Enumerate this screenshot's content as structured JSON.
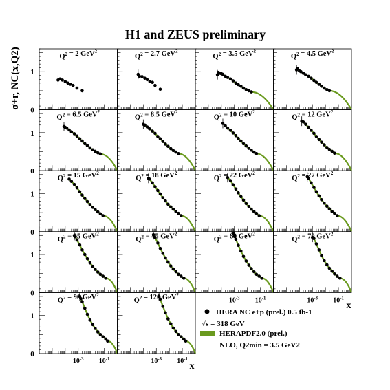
{
  "page": {
    "title": "H1 and ZEUS preliminary",
    "ylabel": "σ+r, NC(x,Q2)",
    "xlabel": "x"
  },
  "legend": {
    "data_label": "HERA NC e+p (prel.) 0.5 fb-1",
    "sqrt_s": "√s = 318 GeV",
    "fit_label": "HERAPDF2.0 (prel.)",
    "fit_note": "NLO, Q2min = 3.5 GeV2"
  },
  "colors": {
    "data": "#000000",
    "fit": "#6a9a1f"
  },
  "chart_data": {
    "type": "scatter",
    "xscale": "log",
    "xlim": [
      1e-06,
      1
    ],
    "ylim": [
      0,
      1.6
    ],
    "yticks": [
      0,
      1
    ],
    "xtick_labels": [
      "10-3",
      "10-1"
    ],
    "panels": [
      {
        "q2": "Q2 = 2 GeV2",
        "x": [
          2.8e-05,
          4e-05,
          6e-05,
          0.0001,
          0.00016,
          0.00025,
          0.0004,
          0.0008,
          0.002
        ],
        "y": [
          0.78,
          0.81,
          0.78,
          0.74,
          0.7,
          0.67,
          0.64,
          0.57,
          0.5
        ],
        "fit": false
      },
      {
        "q2": "Q2 = 2.7 GeV2",
        "x": [
          4e-05,
          5e-05,
          8e-05,
          0.00013,
          0.0002,
          0.00032,
          0.0005,
          0.0008,
          0.002
        ],
        "y": [
          0.93,
          0.88,
          0.87,
          0.83,
          0.79,
          0.74,
          0.72,
          0.64,
          0.54
        ],
        "fit": false
      },
      {
        "q2": "Q2 = 3.5 GeV2",
        "x": [
          5e-05,
          6e-05,
          8e-05,
          0.0001,
          0.00013,
          0.0002,
          0.0003,
          0.0005,
          0.0008,
          0.0013,
          0.002,
          0.0032,
          0.005,
          0.008,
          0.013,
          0.02
        ],
        "y": [
          0.92,
          0.98,
          0.96,
          0.95,
          0.93,
          0.88,
          0.85,
          0.81,
          0.76,
          0.7,
          0.66,
          0.62,
          0.57,
          0.53,
          0.5,
          0.47
        ],
        "fit": true
      },
      {
        "q2": "Q2 = 4.5 GeV2",
        "x": [
          6e-05,
          7e-05,
          0.0001,
          0.00013,
          0.0002,
          0.0003,
          0.0005,
          0.0008,
          0.0013,
          0.002,
          0.0032,
          0.005,
          0.008,
          0.013,
          0.02
        ],
        "y": [
          1.05,
          1.08,
          1.02,
          1.0,
          0.96,
          0.92,
          0.88,
          0.83,
          0.77,
          0.72,
          0.67,
          0.62,
          0.57,
          0.53,
          0.5
        ],
        "fit": true
      },
      {
        "q2": "Q2 = 6.5 GeV2",
        "x": [
          8e-05,
          0.0001,
          0.00013,
          0.0002,
          0.0003,
          0.0005,
          0.0008,
          0.0013,
          0.002,
          0.0032,
          0.005,
          0.008,
          0.013,
          0.02,
          0.032,
          0.05
        ],
        "y": [
          1.16,
          1.14,
          1.12,
          1.07,
          1.02,
          0.97,
          0.91,
          0.84,
          0.78,
          0.71,
          0.66,
          0.6,
          0.55,
          0.51,
          0.47,
          0.44
        ],
        "fit": true
      },
      {
        "q2": "Q2 = 8.5 GeV2",
        "x": [
          0.0001,
          0.00013,
          0.0002,
          0.0003,
          0.0005,
          0.0008,
          0.0013,
          0.002,
          0.0032,
          0.005,
          0.008,
          0.013,
          0.02,
          0.032,
          0.05
        ],
        "y": [
          1.22,
          1.2,
          1.15,
          1.1,
          1.04,
          0.98,
          0.9,
          0.84,
          0.77,
          0.7,
          0.64,
          0.58,
          0.53,
          0.49,
          0.45
        ],
        "fit": true
      },
      {
        "q2": "Q2 = 10 GeV2",
        "x": [
          0.00013,
          0.0002,
          0.0003,
          0.0005,
          0.0008,
          0.0013,
          0.002,
          0.0032,
          0.005,
          0.008,
          0.013,
          0.02,
          0.032,
          0.05
        ],
        "y": [
          1.24,
          1.18,
          1.12,
          1.06,
          0.99,
          0.92,
          0.85,
          0.78,
          0.71,
          0.65,
          0.59,
          0.54,
          0.49,
          0.45
        ],
        "fit": true
      },
      {
        "q2": "Q2 = 12 GeV2",
        "x": [
          0.00015,
          0.0002,
          0.0003,
          0.0005,
          0.0008,
          0.0013,
          0.002,
          0.0032,
          0.005,
          0.008,
          0.013,
          0.02,
          0.032,
          0.05
        ],
        "y": [
          1.3,
          1.28,
          1.22,
          1.14,
          1.06,
          0.98,
          0.9,
          0.82,
          0.75,
          0.68,
          0.61,
          0.56,
          0.51,
          0.46
        ],
        "fit": true
      },
      {
        "q2": "Q2 = 15 GeV2",
        "x": [
          0.0002,
          0.0003,
          0.0005,
          0.0008,
          0.0013,
          0.002,
          0.0032,
          0.005,
          0.008,
          0.013,
          0.02,
          0.032,
          0.05,
          0.08
        ],
        "y": [
          1.38,
          1.32,
          1.24,
          1.15,
          1.05,
          0.96,
          0.87,
          0.79,
          0.71,
          0.64,
          0.58,
          0.52,
          0.47,
          0.42
        ],
        "fit": true
      },
      {
        "q2": "Q2 = 18 GeV2",
        "x": [
          0.00025,
          0.0003,
          0.0005,
          0.0008,
          0.0013,
          0.002,
          0.0032,
          0.005,
          0.008,
          0.013,
          0.02,
          0.032,
          0.05,
          0.08
        ],
        "y": [
          1.4,
          1.38,
          1.28,
          1.18,
          1.08,
          0.99,
          0.89,
          0.81,
          0.72,
          0.65,
          0.59,
          0.53,
          0.48,
          0.42
        ],
        "fit": true
      },
      {
        "q2": "Q2 = 22 GeV2",
        "x": [
          0.0003,
          0.0005,
          0.0008,
          0.0013,
          0.002,
          0.0032,
          0.005,
          0.008,
          0.013,
          0.02,
          0.032,
          0.05,
          0.08
        ],
        "y": [
          1.42,
          1.34,
          1.23,
          1.12,
          1.02,
          0.92,
          0.83,
          0.74,
          0.66,
          0.59,
          0.53,
          0.48,
          0.42
        ],
        "fit": true
      },
      {
        "q2": "Q2 = 27 GeV2",
        "x": [
          0.0004,
          0.0005,
          0.0008,
          0.0013,
          0.002,
          0.0032,
          0.005,
          0.008,
          0.013,
          0.02,
          0.032,
          0.05,
          0.08
        ],
        "y": [
          1.44,
          1.4,
          1.28,
          1.16,
          1.05,
          0.94,
          0.84,
          0.75,
          0.67,
          0.6,
          0.53,
          0.48,
          0.42
        ],
        "fit": true
      },
      {
        "q2": "Q2 = 35 GeV2",
        "x": [
          0.0005,
          0.0006,
          0.0008,
          0.0013,
          0.002,
          0.0032,
          0.005,
          0.008,
          0.013,
          0.02,
          0.032,
          0.05,
          0.08,
          0.13
        ],
        "y": [
          1.5,
          1.47,
          1.38,
          1.25,
          1.12,
          1.0,
          0.89,
          0.78,
          0.69,
          0.61,
          0.54,
          0.48,
          0.43,
          0.38
        ],
        "fit": true
      },
      {
        "q2": "Q2 = 45 GeV2",
        "x": [
          0.0006,
          0.0008,
          0.0013,
          0.002,
          0.0032,
          0.005,
          0.008,
          0.013,
          0.02,
          0.032,
          0.05,
          0.08,
          0.13
        ],
        "y": [
          1.52,
          1.45,
          1.3,
          1.16,
          1.03,
          0.91,
          0.8,
          0.7,
          0.62,
          0.55,
          0.48,
          0.43,
          0.38
        ],
        "fit": true
      },
      {
        "q2": "Q2 = 60 GeV2",
        "x": [
          0.0008,
          0.001,
          0.0013,
          0.002,
          0.0032,
          0.005,
          0.008,
          0.013,
          0.02,
          0.032,
          0.05,
          0.08,
          0.13
        ],
        "y": [
          1.56,
          1.5,
          1.4,
          1.24,
          1.09,
          0.95,
          0.83,
          0.72,
          0.63,
          0.55,
          0.48,
          0.43,
          0.38
        ],
        "fit": true
      },
      {
        "q2": "Q2 = 70 GeV2",
        "x": [
          0.001,
          0.0013,
          0.002,
          0.0032,
          0.005,
          0.008,
          0.013,
          0.02,
          0.032,
          0.05,
          0.08,
          0.13
        ],
        "y": [
          1.45,
          1.42,
          1.28,
          1.12,
          0.97,
          0.84,
          0.73,
          0.64,
          0.56,
          0.49,
          0.43,
          0.38
        ],
        "fit": true
      },
      {
        "q2": "Q2 = 90 GeV2",
        "x": [
          0.0013,
          0.0016,
          0.002,
          0.0032,
          0.005,
          0.008,
          0.013,
          0.02,
          0.032,
          0.05,
          0.08,
          0.13,
          0.18
        ],
        "y": [
          1.5,
          1.44,
          1.36,
          1.19,
          1.03,
          0.88,
          0.76,
          0.66,
          0.57,
          0.5,
          0.44,
          0.38,
          0.33
        ],
        "fit": true
      },
      {
        "q2": "Q2 = 120 GeV2",
        "x": [
          0.0016,
          0.002,
          0.0032,
          0.005,
          0.008,
          0.013,
          0.02,
          0.032,
          0.05,
          0.08,
          0.13,
          0.18
        ],
        "y": [
          1.5,
          1.43,
          1.24,
          1.07,
          0.91,
          0.78,
          0.67,
          0.58,
          0.5,
          0.44,
          0.38,
          0.33
        ],
        "fit": true
      }
    ]
  }
}
